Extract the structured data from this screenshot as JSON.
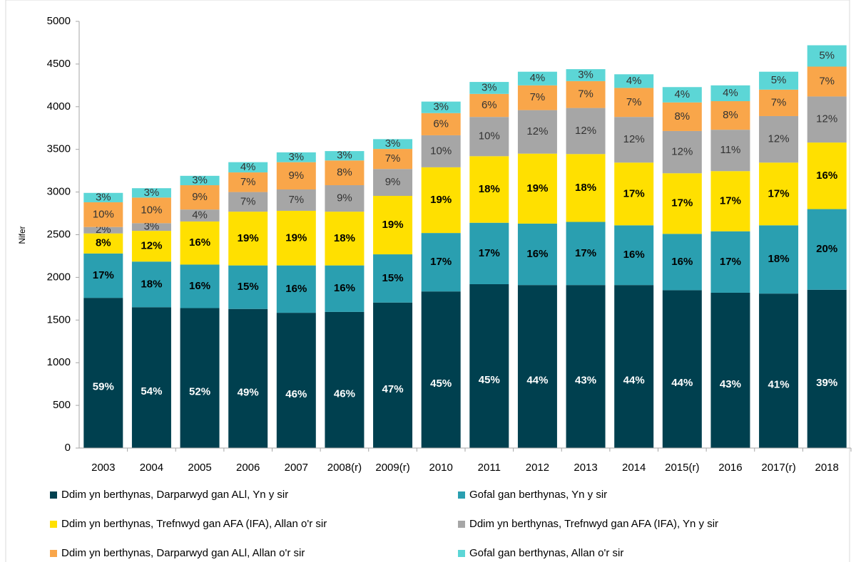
{
  "chart_data": {
    "type": "stacked_bar",
    "y_label": "Nifer",
    "categories": [
      "2003",
      "2004",
      "2005",
      "2006",
      "2007",
      "2008(r)",
      "2009(r)",
      "2010",
      "2011",
      "2012",
      "2013",
      "2014",
      "2015(r)",
      "2016",
      "2017(r)",
      "2018"
    ],
    "ylim": [
      0,
      5000
    ],
    "yticks": [
      0,
      500,
      1000,
      1500,
      2000,
      2500,
      3000,
      3500,
      4000,
      4500,
      5000
    ],
    "grid": false,
    "series": [
      {
        "name": "Ddim yn berthynas, Darparwyd gan ALl, Yn y sir",
        "color": "#00404f",
        "values": [
          1760,
          1650,
          1640,
          1630,
          1585,
          1595,
          1705,
          1835,
          1920,
          1910,
          1910,
          1910,
          1850,
          1820,
          1810,
          1855
        ],
        "share_labels": [
          "59%",
          "54%",
          "52%",
          "49%",
          "46%",
          "46%",
          "47%",
          "45%",
          "45%",
          "44%",
          "43%",
          "44%",
          "44%",
          "43%",
          "41%",
          "39%"
        ]
      },
      {
        "name": "Gofal gan berthynas, Yn y sir",
        "color": "#2a9fb0",
        "values": [
          520,
          535,
          510,
          510,
          555,
          545,
          565,
          685,
          720,
          720,
          740,
          700,
          660,
          720,
          800,
          945
        ],
        "share_labels": [
          "17%",
          "18%",
          "16%",
          "15%",
          "16%",
          "16%",
          "15%",
          "17%",
          "17%",
          "16%",
          "17%",
          "16%",
          "16%",
          "17%",
          "18%",
          "20%"
        ]
      },
      {
        "name": "Ddim yn berthynas, Trefnwyd gan AFA (IFA), Allan o'r sir",
        "color": "#ffe000",
        "values": [
          235,
          360,
          505,
          630,
          640,
          630,
          685,
          770,
          780,
          820,
          795,
          735,
          710,
          705,
          735,
          780
        ],
        "share_labels": [
          "8%",
          "12%",
          "16%",
          "19%",
          "19%",
          "18%",
          "19%",
          "19%",
          "18%",
          "19%",
          "18%",
          "17%",
          "17%",
          "17%",
          "17%",
          "16%"
        ]
      },
      {
        "name": "Ddim yn berthynas, Trefnwyd gan AFA (IFA), Yn y sir",
        "color": "#a6a6a6",
        "values": [
          75,
          90,
          140,
          230,
          250,
          310,
          315,
          375,
          460,
          510,
          540,
          535,
          495,
          485,
          545,
          540
        ],
        "share_labels": [
          "2%",
          "3%",
          "4%",
          "7%",
          "7%",
          "9%",
          "9%",
          "10%",
          "10%",
          "12%",
          "12%",
          "12%",
          "12%",
          "11%",
          "12%",
          "12%"
        ]
      },
      {
        "name": "Ddim yn berthynas, Darparwyd gan ALl, Allan o'r sir",
        "color": "#f9a64a",
        "values": [
          290,
          300,
          285,
          230,
          320,
          290,
          235,
          260,
          270,
          290,
          315,
          340,
          335,
          335,
          310,
          350
        ],
        "share_labels": [
          "10%",
          "10%",
          "9%",
          "7%",
          "9%",
          "8%",
          "7%",
          "6%",
          "6%",
          "7%",
          "7%",
          "7%",
          "8%",
          "8%",
          "7%",
          "7%"
        ]
      },
      {
        "name": "Gofal gan berthynas, Allan o'r sir",
        "color": "#5cd6d6",
        "values": [
          110,
          110,
          110,
          120,
          115,
          110,
          115,
          135,
          140,
          160,
          140,
          160,
          180,
          185,
          210,
          250
        ],
        "share_labels": [
          "3%",
          "3%",
          "3%",
          "4%",
          "3%",
          "3%",
          "3%",
          "3%",
          "3%",
          "4%",
          "3%",
          "4%",
          "4%",
          "4%",
          "5%",
          "5%"
        ]
      }
    ]
  }
}
